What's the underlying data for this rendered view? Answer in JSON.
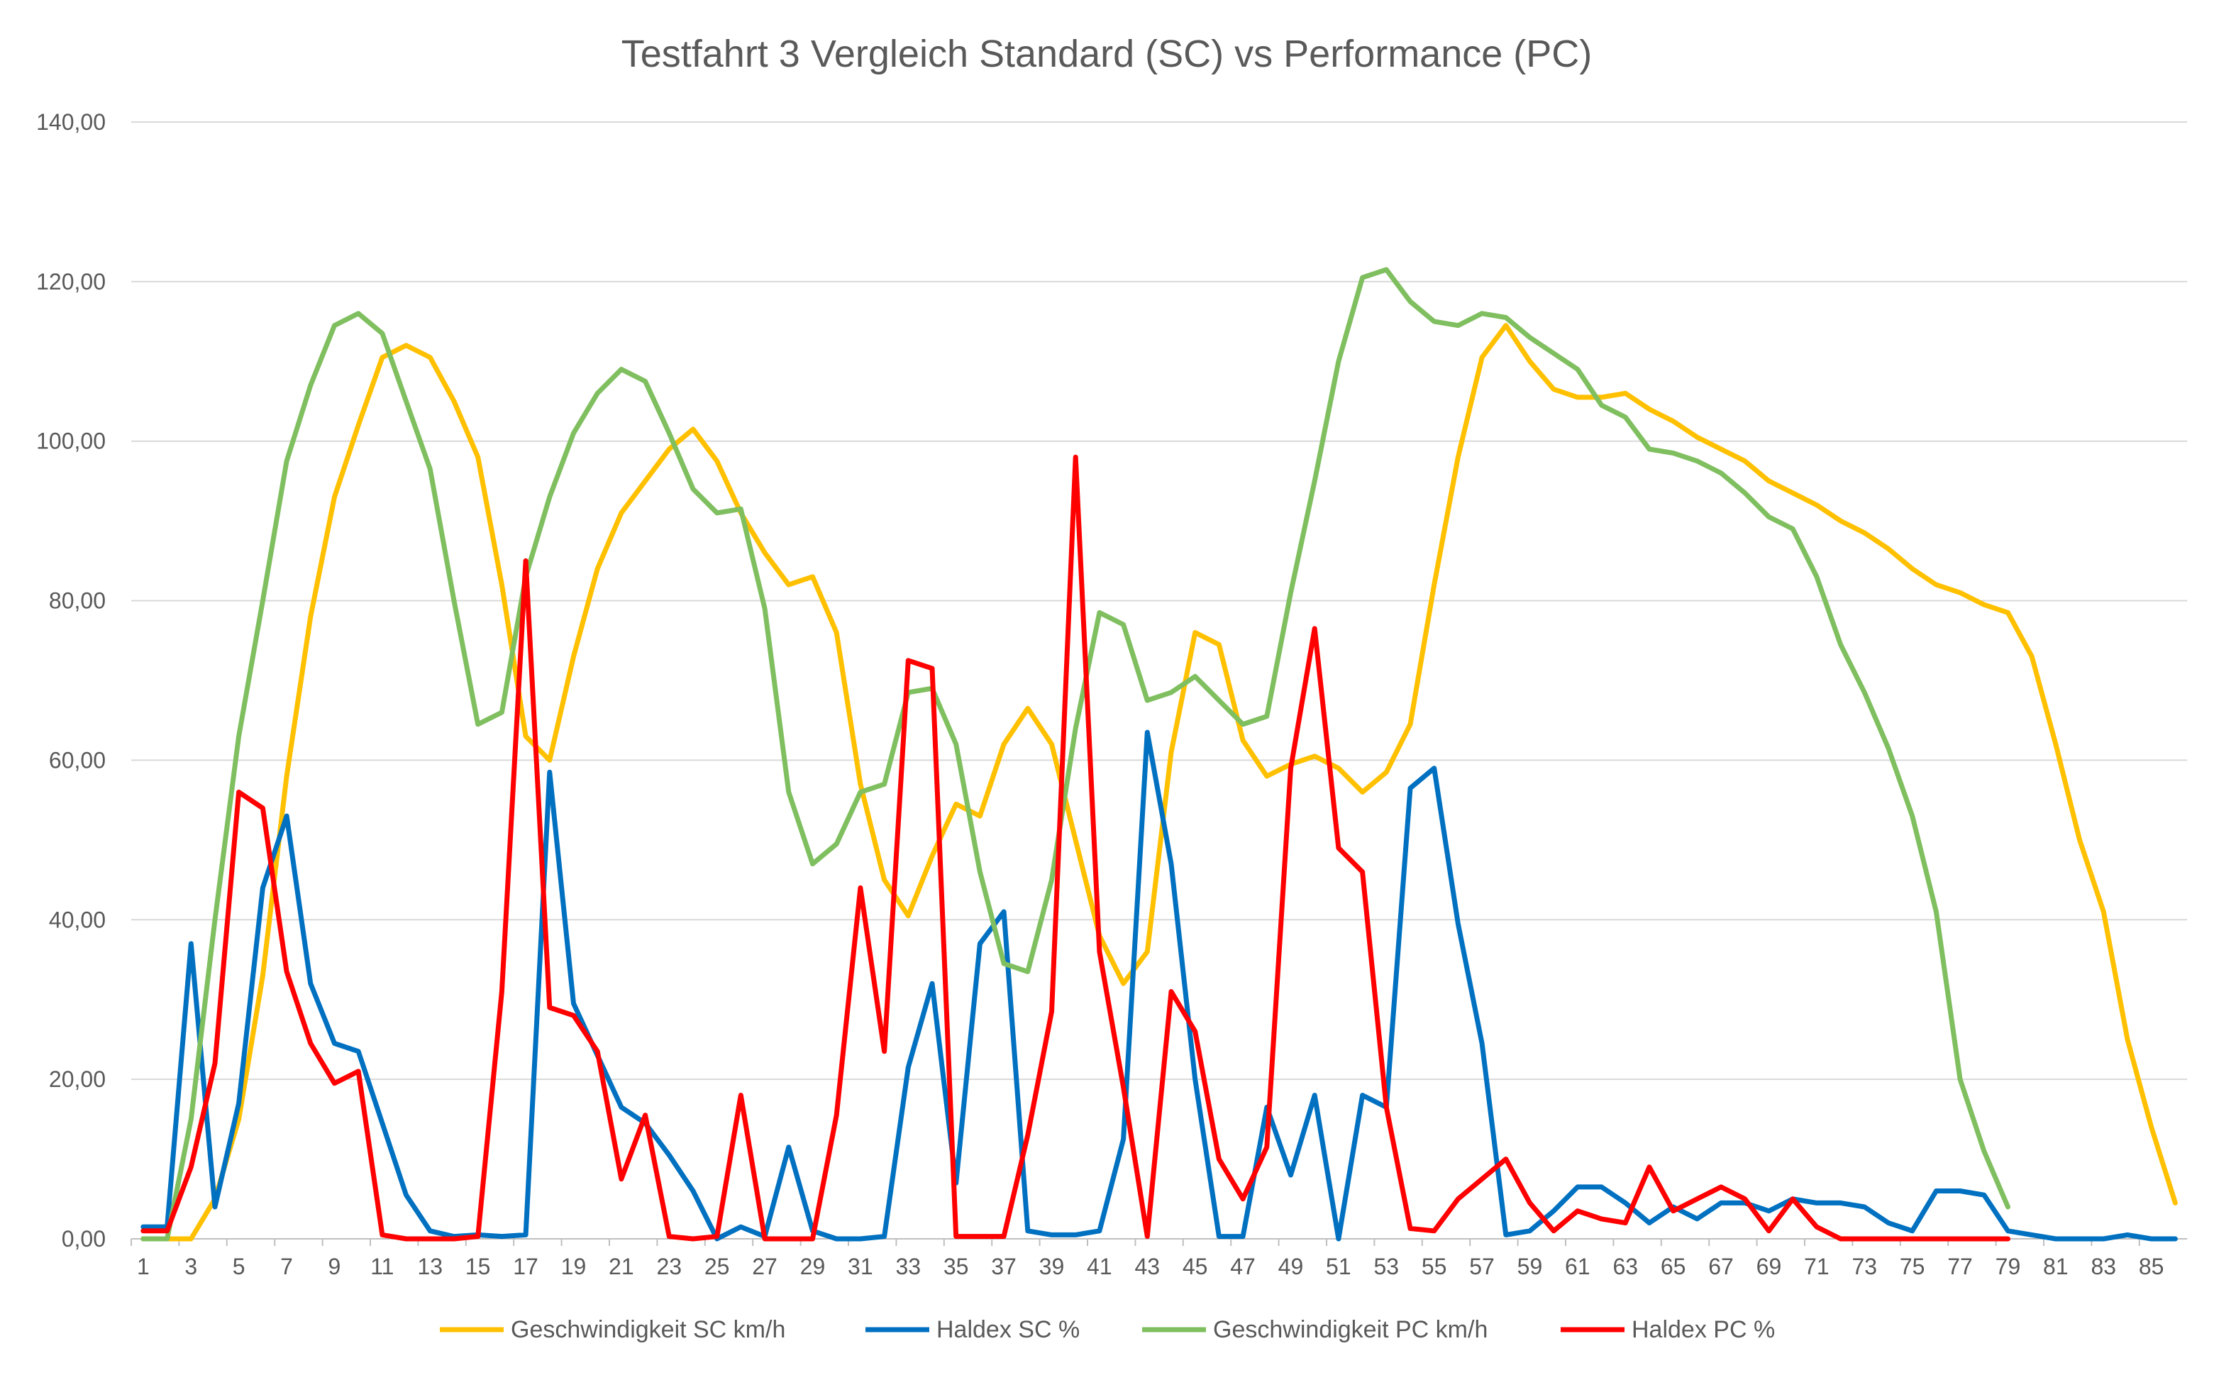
{
  "chart_data": {
    "type": "line",
    "title": "Testfahrt 3 Vergleich Standard (SC) vs Performance (PC)",
    "xlabel": "",
    "ylabel": "",
    "ylim": [
      0,
      140
    ],
    "yticks": [
      "0,00",
      "20,00",
      "40,00",
      "60,00",
      "80,00",
      "100,00",
      "120,00",
      "140,00"
    ],
    "ytick_values": [
      0,
      20,
      40,
      60,
      80,
      100,
      120,
      140
    ],
    "x_categories_count": 86,
    "xtick_labels": [
      "1",
      "3",
      "5",
      "7",
      "9",
      "11",
      "13",
      "15",
      "17",
      "19",
      "21",
      "23",
      "25",
      "27",
      "29",
      "31",
      "33",
      "35",
      "37",
      "39",
      "41",
      "43",
      "45",
      "47",
      "49",
      "51",
      "53",
      "55",
      "57",
      "59",
      "61",
      "63",
      "65",
      "67",
      "69",
      "71",
      "73",
      "75",
      "77",
      "79",
      "81",
      "83",
      "85"
    ],
    "grid": "horizontal",
    "legend_position": "bottom",
    "series": [
      {
        "name": "Geschwindigkeit SC km/h",
        "color": "#FFC000",
        "values": [
          0,
          0,
          0,
          5,
          15,
          33,
          58,
          78,
          93,
          102,
          110.5,
          112,
          110.5,
          105,
          98,
          82,
          63,
          60,
          73,
          84,
          91,
          95,
          99,
          101.5,
          97.5,
          91,
          86,
          82,
          83,
          76,
          57,
          45,
          40.5,
          48,
          54.5,
          53,
          62,
          66.5,
          62,
          50,
          38,
          32,
          36,
          61,
          76,
          74.5,
          62.5,
          58,
          59.5,
          60.5,
          59,
          56,
          58.5,
          64.5,
          82,
          98,
          110.5,
          114.5,
          110,
          106.5,
          105.5,
          105.5,
          106,
          104,
          102.5,
          100.5,
          99,
          97.5,
          95,
          93.5,
          92,
          90,
          88.5,
          86.5,
          84,
          82,
          81,
          79.5,
          78.5,
          73,
          62,
          50,
          41,
          25,
          14,
          4.5
        ]
      },
      {
        "name": "Haldex SC %",
        "color": "#0070C0",
        "values": [
          1.5,
          1.5,
          37,
          4,
          17,
          44,
          53,
          32,
          24.5,
          23.5,
          14.5,
          5.5,
          1,
          0.3,
          0.5,
          0.3,
          0.5,
          58.5,
          29.5,
          23,
          16.5,
          14.5,
          10.5,
          6,
          0,
          1.5,
          0.3,
          11.5,
          1,
          0,
          0,
          0.3,
          21.5,
          32,
          7,
          37,
          41,
          1,
          0.5,
          0.5,
          1,
          12.5,
          63.5,
          47,
          20,
          0.3,
          0.3,
          16.5,
          8,
          18,
          0,
          18,
          16.5,
          56.5,
          59,
          39.5,
          24.5,
          0.5,
          1,
          3.5,
          6.5,
          6.5,
          4.5,
          2,
          4,
          2.5,
          4.5,
          4.5,
          3.5,
          5,
          4.5,
          4.5,
          4,
          2,
          1,
          6,
          6,
          5.5,
          1,
          0.5,
          0,
          0,
          0,
          0.5,
          0,
          0
        ]
      },
      {
        "name": "Geschwindigkeit PC km/h",
        "color": "#7FBF5F",
        "values": [
          0,
          0,
          15,
          40,
          63,
          80,
          97.5,
          107,
          114.5,
          116,
          113.5,
          105,
          96.5,
          80,
          64.5,
          66,
          83,
          93,
          101,
          106,
          109,
          107.5,
          101,
          94,
          91,
          91.5,
          79,
          56,
          47,
          49.5,
          56,
          57,
          68.5,
          69,
          62,
          46,
          34.5,
          33.5,
          45,
          64,
          78.5,
          77,
          67.5,
          68.5,
          70.5,
          67.5,
          64.5,
          65.5,
          81,
          95,
          110,
          120.5,
          121.5,
          117.5,
          115,
          114.5,
          116,
          115.5,
          113,
          111,
          109,
          104.5,
          103,
          99,
          98.5,
          97.5,
          96,
          93.5,
          90.5,
          89,
          83,
          74.5,
          68.5,
          61.5,
          53,
          41,
          20,
          11,
          4
        ]
      },
      {
        "name": "Haldex PC %",
        "color": "#FF0000",
        "values": [
          1,
          1,
          9,
          22,
          56,
          54,
          33.5,
          24.5,
          19.5,
          21,
          0.5,
          0,
          0,
          0,
          0.3,
          31,
          85,
          29,
          28,
          23.5,
          7.5,
          15.5,
          0.3,
          0,
          0.3,
          18,
          0,
          0,
          0,
          15.5,
          44,
          23.5,
          72.5,
          71.5,
          0.3,
          0.3,
          0.3,
          13,
          28.5,
          98,
          36,
          19,
          0.3,
          31,
          26,
          10,
          5,
          11.5,
          59,
          76.5,
          49,
          46,
          16.5,
          1.3,
          1,
          5,
          7.5,
          10,
          4.5,
          1,
          3.5,
          2.5,
          2,
          9,
          3.5,
          5,
          6.5,
          5,
          1,
          5,
          1.5,
          0,
          0,
          0,
          0,
          0,
          0,
          0,
          0
        ]
      }
    ]
  }
}
